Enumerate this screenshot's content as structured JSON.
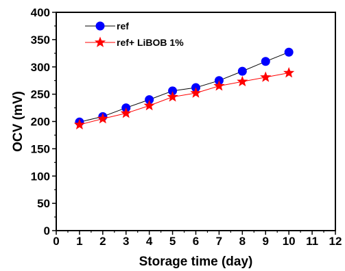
{
  "chart_data": {
    "type": "line",
    "title": "",
    "xlabel": "Storage time (day)",
    "ylabel": "OCV (mV)",
    "xlim": [
      0,
      12
    ],
    "ylim": [
      0,
      400
    ],
    "xticks": [
      0,
      1,
      2,
      3,
      4,
      5,
      6,
      7,
      8,
      9,
      10,
      11,
      12
    ],
    "yticks": [
      0,
      50,
      100,
      150,
      200,
      250,
      300,
      350,
      400
    ],
    "grid": false,
    "legend_position": "top-left",
    "series": [
      {
        "name": "ref",
        "x": [
          1,
          2,
          3,
          4,
          5,
          6,
          7,
          8,
          9,
          10
        ],
        "y": [
          199,
          209,
          225,
          240,
          256,
          262,
          275,
          292,
          310,
          327
        ],
        "line_color": "#000000",
        "marker": "circle",
        "marker_color": "#0000ff"
      },
      {
        "name": "ref+ LiBOB 1%",
        "x": [
          1,
          2,
          3,
          4,
          5,
          6,
          7,
          8,
          9,
          10
        ],
        "y": [
          194,
          205,
          215,
          229,
          245,
          252,
          265,
          273,
          281,
          289
        ],
        "line_color": "#ff0000",
        "marker": "star",
        "marker_color": "#ff0000"
      }
    ]
  }
}
